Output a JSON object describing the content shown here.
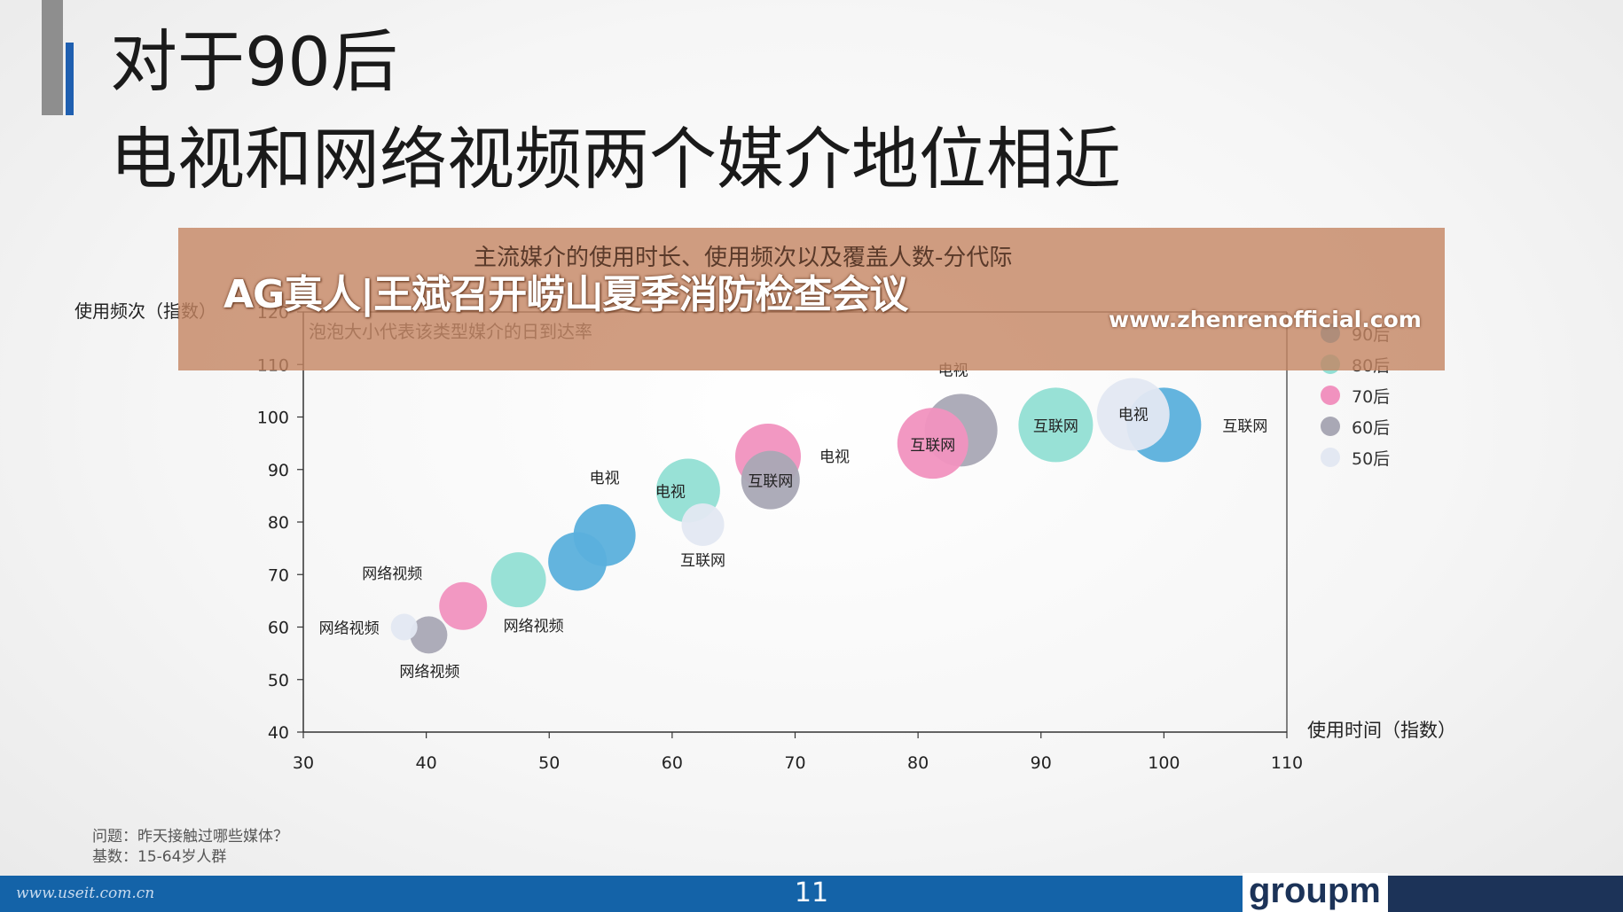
{
  "slide": {
    "title_line1": "对于90后",
    "title_line2": "电视和网络视频两个媒介地位相近",
    "page_number": "11",
    "footer_site": "www.useit.com.cn",
    "logo_text": "groupm",
    "notes": [
      "问题：昨天接触过哪些媒体？",
      "基数：15-64岁人群"
    ]
  },
  "overlay": {
    "headline": "AG真人|王斌召开崂山夏季消防检查会议",
    "url": "www.zhenrenofficial.com"
  },
  "chart_data": {
    "type": "scatter",
    "title": "主流媒介的使用时长、使用频次以及覆盖人数-分代际",
    "subtitle": "泡泡大小代表该类型媒介的日到达率",
    "xlabel": "使用时间（指数）",
    "ylabel": "使用频次（指数）",
    "xlim": [
      30,
      110
    ],
    "ylim": [
      40,
      120
    ],
    "xticks": [
      30,
      40,
      50,
      60,
      70,
      80,
      90,
      100,
      110
    ],
    "yticks": [
      40,
      50,
      60,
      70,
      80,
      90,
      100,
      110,
      120
    ],
    "legend_position": "right",
    "series": [
      {
        "name": "90后",
        "color": "#5bb0dc",
        "points": [
          {
            "x": 52.3,
            "y": 72.5,
            "r": 33,
            "label": ""
          },
          {
            "x": 54.5,
            "y": 77.5,
            "r": 35,
            "label": "电视"
          },
          {
            "x": 100,
            "y": 98.5,
            "r": 42,
            "label": "互联网"
          }
        ]
      },
      {
        "name": "80后",
        "color": "#92dfd4",
        "points": [
          {
            "x": 47.5,
            "y": 69,
            "r": 31,
            "label": "网络视频"
          },
          {
            "x": 61.3,
            "y": 86,
            "r": 36,
            "label": "电视"
          },
          {
            "x": 91.2,
            "y": 98.5,
            "r": 42,
            "label": "互联网"
          }
        ]
      },
      {
        "name": "70后",
        "color": "#f192bf",
        "points": [
          {
            "x": 43,
            "y": 64,
            "r": 27,
            "label": "网络视频"
          },
          {
            "x": 67.8,
            "y": 92.5,
            "r": 37,
            "label": "电视"
          },
          {
            "x": 81.2,
            "y": 95,
            "r": 40,
            "label": "互联网"
          }
        ]
      },
      {
        "name": "60后",
        "color": "#a9a8b5",
        "points": [
          {
            "x": 40.2,
            "y": 58.5,
            "r": 21,
            "label": "网络视频"
          },
          {
            "x": 68,
            "y": 88,
            "r": 33,
            "label": "互联网"
          },
          {
            "x": 83.5,
            "y": 97.5,
            "r": 41,
            "label": "电视"
          }
        ]
      },
      {
        "name": "50后",
        "color": "#e3e8f2",
        "points": [
          {
            "x": 38.2,
            "y": 60,
            "r": 15,
            "label": "网络视频"
          },
          {
            "x": 62.5,
            "y": 79.5,
            "r": 24,
            "label": "互联网"
          },
          {
            "x": 97.5,
            "y": 100.5,
            "r": 41,
            "label": "电视"
          }
        ]
      }
    ]
  }
}
